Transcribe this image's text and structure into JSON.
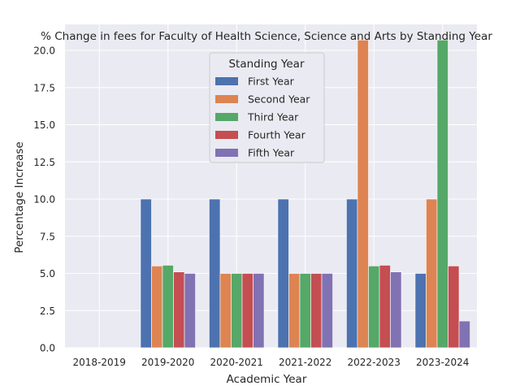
{
  "chart_data": {
    "type": "bar",
    "title": "% Change in fees for Faculty of Health Science, Science and Arts by Standing Year",
    "xlabel": "Academic Year",
    "ylabel": "Percentage Increase",
    "ylim": [
      0,
      21.75
    ],
    "yticks": [
      "0.0",
      "2.5",
      "5.0",
      "7.5",
      "10.0",
      "12.5",
      "15.0",
      "17.5",
      "20.0"
    ],
    "grid": true,
    "legend_title": "Standing Year",
    "legend_position": "top-center",
    "categories": [
      "2018-2019",
      "2019-2020",
      "2020-2021",
      "2021-2022",
      "2022-2023",
      "2023-2024"
    ],
    "series": [
      {
        "name": "First Year",
        "color": "#4c72b0",
        "values": [
          0,
          10.0,
          10.0,
          10.0,
          10.0,
          5.0
        ]
      },
      {
        "name": "Second Year",
        "color": "#dd8452",
        "values": [
          0,
          5.5,
          5.0,
          5.0,
          20.7,
          10.0
        ]
      },
      {
        "name": "Third Year",
        "color": "#55a868",
        "values": [
          0,
          5.55,
          5.0,
          5.0,
          5.5,
          20.7
        ]
      },
      {
        "name": "Fourth Year",
        "color": "#c44e52",
        "values": [
          0,
          5.1,
          5.0,
          5.0,
          5.55,
          5.5
        ]
      },
      {
        "name": "Fifth Year",
        "color": "#8172b3",
        "values": [
          0,
          5.0,
          5.0,
          5.0,
          5.1,
          1.8
        ]
      }
    ]
  }
}
